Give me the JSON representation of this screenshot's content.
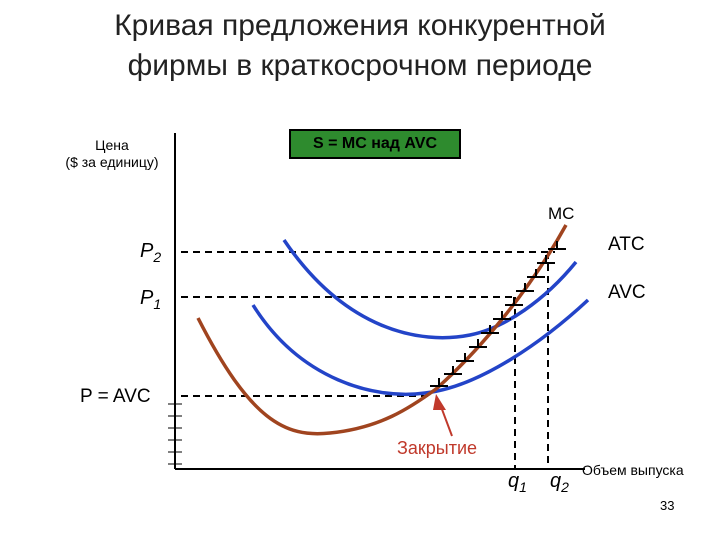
{
  "title": {
    "line1": "Кривая предложения конкурентной",
    "line2": "фирмы в краткосрочном периоде"
  },
  "axes": {
    "y_label_line1": "Цена",
    "y_label_line2": "($ за единицу)",
    "x_label": "Объем выпуска"
  },
  "supply_box": "S = MC над AVC",
  "curves": {
    "mc": "MC",
    "atc": "ATC",
    "avc": "AVC"
  },
  "price_levels": {
    "p2": "P",
    "p2_sub": "2",
    "p1": "P",
    "p1_sub": "1",
    "p_avc": "P = AVC"
  },
  "quantities": {
    "q1": "q",
    "q1_sub": "1",
    "q2": "q",
    "q2_sub": "2"
  },
  "shutdown_label": "Закрытие",
  "page_number": "33",
  "colors": {
    "mc_curve": "#a0441f",
    "cost_curves": "#2344c8",
    "supply_box": "#2e8b2e",
    "shutdown_arrow": "#c0392b"
  }
}
